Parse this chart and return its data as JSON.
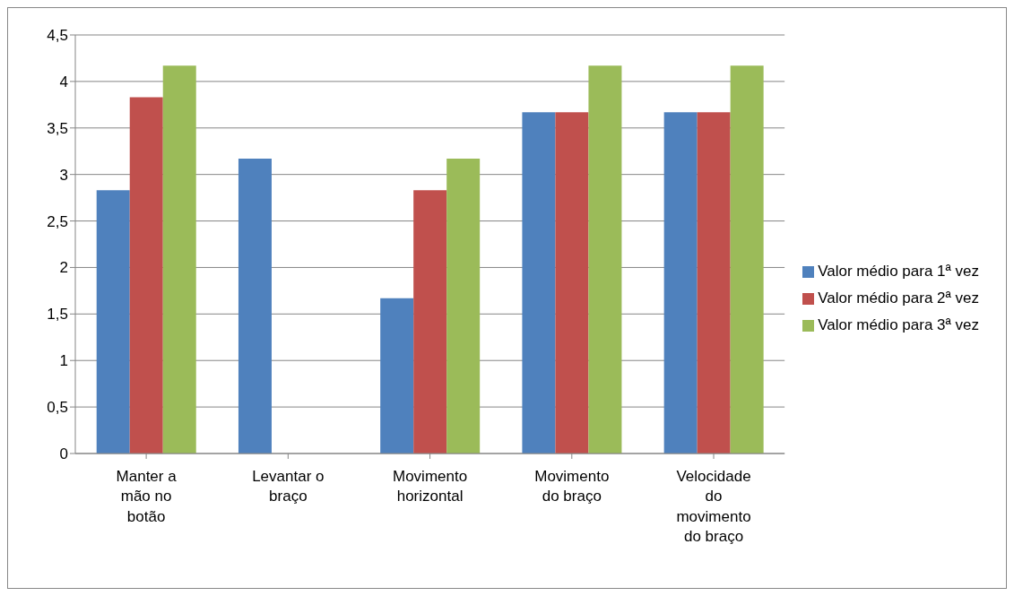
{
  "chart_data": {
    "type": "bar",
    "categories": [
      "Manter a mão no botão",
      "Levantar o braço",
      "Movimento horizontal",
      "Movimento do braço",
      "Velocidade do movimento do braço"
    ],
    "series": [
      {
        "name": "Valor médio para 1ª vez",
        "color": "#4f81bd",
        "values": [
          2.83,
          3.17,
          1.67,
          3.67,
          3.67
        ]
      },
      {
        "name": "Valor médio para 2ª vez",
        "color": "#c0504d",
        "values": [
          3.83,
          0,
          2.83,
          3.67,
          3.67
        ]
      },
      {
        "name": "Valor médio para 3ª vez",
        "color": "#9bbb59",
        "values": [
          4.17,
          0,
          3.17,
          4.17,
          4.17
        ]
      }
    ],
    "ylim": [
      0,
      4.5
    ],
    "yticks": [
      0,
      {
        "value": 0.5,
        "label": "0,5"
      },
      1,
      {
        "value": 1.5,
        "label": "1,5"
      },
      2,
      {
        "value": 2.5,
        "label": "2,5"
      },
      3,
      {
        "value": 3.5,
        "label": "3,5"
      },
      4,
      {
        "value": 4.5,
        "label": "4,5"
      }
    ],
    "grid": "y",
    "legend": "right"
  }
}
